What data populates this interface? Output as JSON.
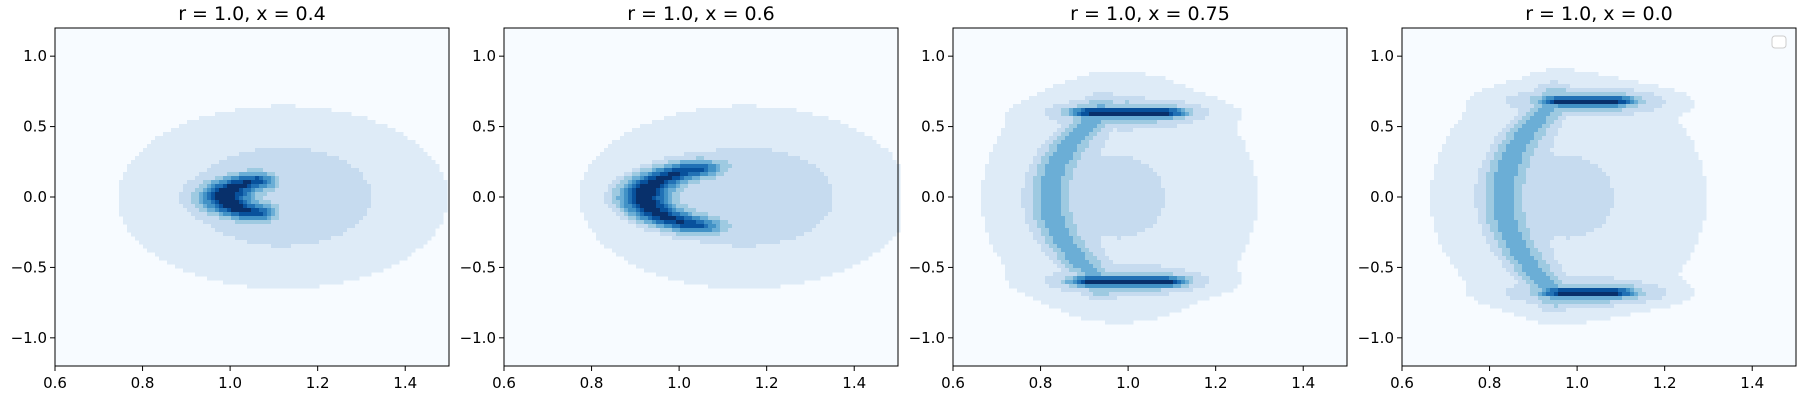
{
  "chart_data": [
    {
      "type": "contour",
      "title": "r = 1.0, x = 0.4",
      "xlim": [
        0.6,
        1.5
      ],
      "ylim": [
        -1.2,
        1.2
      ],
      "xticks": [
        0.6,
        0.8,
        1.0,
        1.2,
        1.4
      ],
      "yticks": [
        1.0,
        0.5,
        0.0,
        -0.5,
        -1.0
      ],
      "xtick_labels": [
        "0.6",
        "0.8",
        "1.0",
        "1.2",
        "1.4"
      ],
      "ytick_labels": [
        "1.0",
        "0.5",
        "0.0",
        "−0.5",
        "−1.0"
      ],
      "colormap": "Blues",
      "density": {
        "shape": "crescent",
        "center": [
          1.12,
          0.0
        ],
        "radius": 0.13,
        "arc_half_angle_deg": 65,
        "peak_location": [
          1.01,
          0.0
        ]
      },
      "legend": false
    },
    {
      "type": "contour",
      "title": "r = 1.0, x = 0.6",
      "xlim": [
        0.6,
        1.5
      ],
      "ylim": [
        -1.2,
        1.2
      ],
      "xticks": [
        0.6,
        0.8,
        1.0,
        1.2,
        1.4
      ],
      "yticks": [
        1.0,
        0.5,
        0.0,
        -0.5,
        -1.0
      ],
      "xtick_labels": [
        "0.6",
        "0.8",
        "1.0",
        "1.2",
        "1.4"
      ],
      "ytick_labels": [
        "1.0",
        "0.5",
        "0.0",
        "−0.5",
        "−1.0"
      ],
      "colormap": "Blues",
      "density": {
        "shape": "crescent",
        "center": [
          1.15,
          0.0
        ],
        "radius": 0.23,
        "arc_half_angle_deg": 60,
        "peak_location": [
          0.94,
          0.0
        ]
      },
      "legend": false
    },
    {
      "type": "contour",
      "title": "r = 1.0, x = 0.75",
      "xlim": [
        0.6,
        1.5
      ],
      "ylim": [
        -1.2,
        1.2
      ],
      "xticks": [
        0.6,
        0.8,
        1.0,
        1.2,
        1.4
      ],
      "yticks": [
        1.0,
        0.5,
        0.0,
        -0.5,
        -1.0
      ],
      "xtick_labels": [
        "0.6",
        "0.8",
        "1.0",
        "1.2",
        "1.4"
      ],
      "ytick_labels": [
        "1.0",
        "0.5",
        "0.0",
        "−0.5",
        "−1.0"
      ],
      "colormap": "Blues",
      "density": {
        "shape": "c-shape",
        "arms_y": [
          0.6,
          -0.6
        ],
        "arm_x_range": [
          0.92,
          1.08
        ],
        "spine_x": 0.82,
        "peak_locations": [
          [
            1.0,
            0.6
          ],
          [
            1.0,
            -0.6
          ]
        ]
      },
      "legend": false
    },
    {
      "type": "contour",
      "title": "r = 1.0, x = 0.0",
      "xlim": [
        0.6,
        1.5
      ],
      "ylim": [
        -1.2,
        1.2
      ],
      "xticks": [
        0.6,
        0.8,
        1.0,
        1.2,
        1.4
      ],
      "yticks": [
        1.0,
        0.5,
        0.0,
        -0.5,
        -1.0
      ],
      "xtick_labels": [
        "0.6",
        "0.8",
        "1.0",
        "1.2",
        "1.4"
      ],
      "ytick_labels": [
        "1.0",
        "0.5",
        "0.0",
        "−0.5",
        "−1.0"
      ],
      "colormap": "Blues",
      "density": {
        "shape": "c-shape",
        "arms_y": [
          0.68,
          -0.68
        ],
        "arm_x_range": [
          0.97,
          1.08
        ],
        "spine_x": 0.83,
        "peak_locations": [
          [
            1.02,
            0.7
          ],
          [
            1.02,
            -0.7
          ]
        ]
      },
      "legend": "empty, upper-right"
    }
  ]
}
